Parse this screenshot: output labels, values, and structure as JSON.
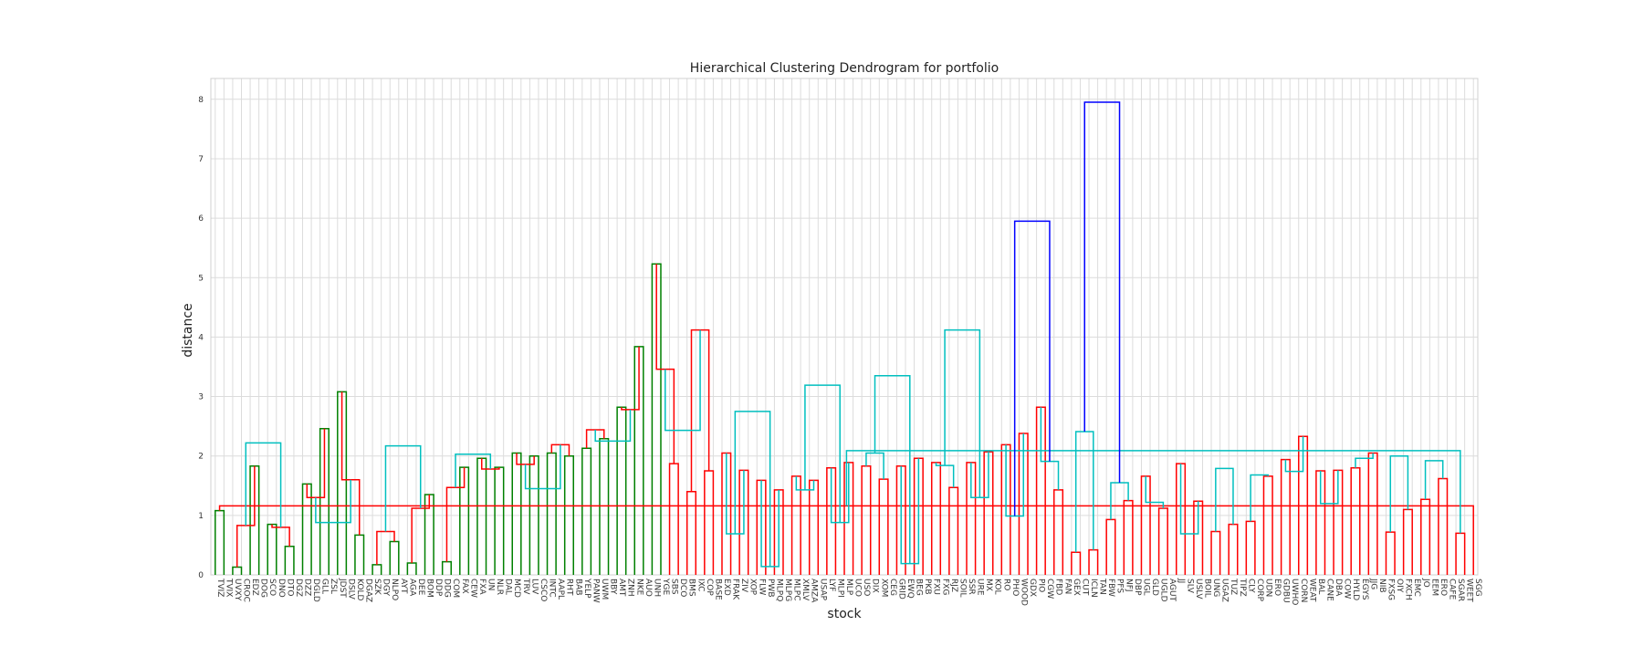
{
  "chart_data": {
    "type": "dendrogram",
    "title": "Hierarchical Clustering Dendrogram for portfolio",
    "xlabel": "stock",
    "ylabel": "distance",
    "ylim": [
      0,
      8.35
    ],
    "yticks": [
      0,
      1,
      2,
      3,
      4,
      5,
      6,
      7,
      8
    ],
    "grid": true,
    "colors": {
      "green": "#008000",
      "red": "#ff0000",
      "cyan": "#00bfbf",
      "blue": "#0000ff"
    },
    "leaves": [
      "TVIZ",
      "TVIX",
      "UVXY",
      "CROC",
      "EDZ",
      "DOG",
      "SCO",
      "DNO",
      "DTO",
      "DGZ",
      "DZZ",
      "DGLD",
      "GLL",
      "ZSL",
      "JDST",
      "DSLV",
      "KOLD",
      "DGAZ",
      "SZK",
      "DGY",
      "NLPO",
      "AYT",
      "AGA",
      "DEE",
      "BOM",
      "DDP",
      "DDG",
      "COM",
      "FAX",
      "CEW",
      "FXA",
      "UN",
      "NLR",
      "DAL",
      "MCD",
      "TRV",
      "LUV",
      "CSCO",
      "INTC",
      "AAPL",
      "RHT",
      "BAB",
      "YELP",
      "PANW",
      "UWM",
      "BBY",
      "AMT",
      "ZNH",
      "NKE",
      "AUO",
      "UNH",
      "YGE",
      "SBS",
      "DCO",
      "BMS",
      "IXC",
      "COP",
      "BASE",
      "EXD",
      "FRAK",
      "ZIV",
      "XOP",
      "FLW",
      "PWB",
      "MLPQ",
      "MLPG",
      "MLPC",
      "XMLV",
      "AMZA",
      "USAP",
      "LYF",
      "MLPI",
      "MLP",
      "UCO",
      "USO",
      "DIX",
      "XOM",
      "CEG",
      "GRID",
      "EWQ",
      "BEG",
      "PKB",
      "FXU",
      "FXG",
      "RJZ",
      "SOIL",
      "SSR",
      "URE",
      "MX",
      "KOL",
      "RO",
      "PHO",
      "WOOD",
      "GDX",
      "PIO",
      "CGW",
      "FBD",
      "FAN",
      "GEX",
      "CUT",
      "ICLN",
      "TAN",
      "FBW",
      "PFS",
      "NFJ",
      "DBP",
      "UGL",
      "GLD",
      "UGLD",
      "AGUT",
      "JJ",
      "SLV",
      "USLV",
      "BOIL",
      "UNG",
      "UGAZ",
      "TUZ",
      "TIPZ",
      "CLY",
      "CORP",
      "UDN",
      "ERO",
      "GDBU",
      "UWHO",
      "CORN",
      "WEAT",
      "BAL",
      "CANE",
      "DBA",
      "COW",
      "HYLD",
      "EGYS",
      "JJG",
      "NIB",
      "FXSG",
      "OIY",
      "FXCH",
      "EMC",
      "JO",
      "EEM",
      "ERO",
      "CAFE",
      "SGAR",
      "WEET",
      "SGG"
    ],
    "links": [
      [
        0,
        1,
        1.08,
        "green"
      ],
      [
        2,
        3,
        0.13,
        "green"
      ],
      [
        4,
        5,
        1.83,
        "green"
      ],
      [
        6,
        7,
        0.85,
        "green"
      ],
      [
        8,
        9,
        0.48,
        "green"
      ],
      [
        10,
        11,
        1.53,
        "green"
      ],
      [
        12,
        13,
        2.46,
        "green"
      ],
      [
        14,
        15,
        3.08,
        "green"
      ],
      [
        16,
        17,
        0.67,
        "green"
      ],
      [
        18,
        19,
        0.17,
        "green"
      ],
      [
        20,
        21,
        0.56,
        "green"
      ],
      [
        22,
        23,
        0.2,
        "green"
      ],
      [
        24,
        25,
        1.35,
        "green"
      ],
      [
        26,
        27,
        0.22,
        "green"
      ],
      [
        28,
        29,
        1.81,
        "green"
      ],
      [
        30,
        31,
        1.96,
        "green"
      ],
      [
        32,
        33,
        1.81,
        "green"
      ],
      [
        34,
        35,
        2.05,
        "green"
      ],
      [
        36,
        37,
        2.0,
        "green"
      ],
      [
        38,
        39,
        2.05,
        "green"
      ],
      [
        40,
        41,
        2.0,
        "green"
      ],
      [
        42,
        43,
        2.13,
        "green"
      ],
      [
        44,
        45,
        2.29,
        "green"
      ],
      [
        46,
        47,
        2.82,
        "green"
      ],
      [
        48,
        49,
        3.84,
        "green"
      ],
      [
        50,
        51,
        5.23,
        "green"
      ],
      [
        52,
        53,
        1.87,
        "red"
      ],
      [
        54,
        55,
        1.4,
        "red"
      ],
      [
        56,
        57,
        1.75,
        "red"
      ],
      [
        58,
        59,
        2.05,
        "red"
      ],
      [
        60,
        61,
        1.76,
        "red"
      ],
      [
        62,
        63,
        1.59,
        "red"
      ],
      [
        64,
        65,
        1.43,
        "red"
      ],
      [
        66,
        67,
        1.66,
        "red"
      ],
      [
        68,
        69,
        1.59,
        "red"
      ],
      [
        70,
        71,
        1.8,
        "red"
      ],
      [
        72,
        73,
        1.89,
        "red"
      ],
      [
        74,
        75,
        1.83,
        "red"
      ],
      [
        76,
        77,
        1.61,
        "red"
      ],
      [
        78,
        79,
        1.83,
        "red"
      ],
      [
        80,
        81,
        1.96,
        "red"
      ],
      [
        82,
        83,
        1.89,
        "red"
      ],
      [
        84,
        85,
        1.47,
        "red"
      ],
      [
        86,
        87,
        1.89,
        "red"
      ],
      [
        88,
        89,
        2.07,
        "red"
      ],
      [
        90,
        91,
        2.19,
        "red"
      ],
      [
        92,
        93,
        2.38,
        "red"
      ],
      [
        94,
        95,
        2.82,
        "red"
      ],
      [
        96,
        97,
        1.43,
        "red"
      ],
      [
        98,
        99,
        0.38,
        "red"
      ],
      [
        100,
        101,
        0.42,
        "red"
      ],
      [
        102,
        103,
        0.93,
        "red"
      ],
      [
        104,
        105,
        1.25,
        "red"
      ],
      [
        106,
        107,
        1.66,
        "red"
      ],
      [
        108,
        109,
        1.12,
        "red"
      ],
      [
        110,
        111,
        1.87,
        "red"
      ],
      [
        112,
        113,
        1.24,
        "red"
      ],
      [
        114,
        115,
        0.73,
        "red"
      ],
      [
        116,
        117,
        0.85,
        "red"
      ],
      [
        118,
        119,
        0.9,
        "red"
      ],
      [
        120,
        121,
        1.66,
        "red"
      ],
      [
        122,
        123,
        1.94,
        "red"
      ],
      [
        124,
        125,
        2.33,
        "red"
      ],
      [
        126,
        127,
        1.75,
        "red"
      ],
      [
        128,
        129,
        1.76,
        "red"
      ],
      [
        130,
        131,
        1.8,
        "red"
      ],
      [
        132,
        133,
        2.05,
        "red"
      ],
      [
        134,
        135,
        0.72,
        "red"
      ],
      [
        136,
        137,
        1.1,
        "red"
      ],
      [
        138,
        139,
        1.27,
        "red"
      ],
      [
        140,
        141,
        1.62,
        "red"
      ],
      [
        142,
        143,
        0.7,
        "red"
      ],
      [
        144,
        145,
        1.16,
        "red"
      ],
      [
        146,
        147,
        0.83,
        "red"
      ],
      [
        148,
        149,
        0.8,
        "red"
      ],
      [
        150,
        151,
        1.3,
        "red"
      ],
      [
        152,
        153,
        1.6,
        "red"
      ],
      [
        154,
        155,
        0.73,
        "red"
      ],
      [
        156,
        157,
        1.12,
        "red"
      ],
      [
        158,
        159,
        1.47,
        "red"
      ],
      [
        160,
        161,
        1.78,
        "red"
      ],
      [
        162,
        163,
        1.86,
        "red"
      ],
      [
        164,
        165,
        2.19,
        "red"
      ],
      [
        166,
        167,
        2.44,
        "red"
      ],
      [
        168,
        169,
        2.78,
        "red"
      ],
      [
        170,
        171,
        3.46,
        "red"
      ],
      [
        172,
        173,
        4.12,
        "red"
      ],
      [
        174,
        175,
        0.69,
        "cyan"
      ],
      [
        176,
        177,
        0.14,
        "cyan"
      ],
      [
        178,
        179,
        1.43,
        "cyan"
      ],
      [
        180,
        181,
        0.88,
        "cyan"
      ],
      [
        182,
        183,
        2.05,
        "cyan"
      ],
      [
        184,
        185,
        0.19,
        "cyan"
      ],
      [
        186,
        187,
        1.84,
        "cyan"
      ],
      [
        188,
        189,
        1.3,
        "cyan"
      ],
      [
        190,
        191,
        0.99,
        "cyan"
      ],
      [
        192,
        193,
        1.91,
        "cyan"
      ],
      [
        194,
        195,
        2.41,
        "cyan"
      ],
      [
        196,
        197,
        1.55,
        "cyan"
      ],
      [
        198,
        199,
        1.22,
        "cyan"
      ],
      [
        200,
        201,
        0.69,
        "cyan"
      ],
      [
        202,
        203,
        1.79,
        "cyan"
      ],
      [
        204,
        205,
        1.68,
        "cyan"
      ],
      [
        206,
        207,
        1.74,
        "cyan"
      ],
      [
        208,
        209,
        1.2,
        "cyan"
      ],
      [
        210,
        211,
        1.96,
        "cyan"
      ],
      [
        212,
        213,
        2.0,
        "cyan"
      ],
      [
        214,
        215,
        1.92,
        "cyan"
      ],
      [
        216,
        217,
        2.09,
        "cyan"
      ],
      [
        218,
        219,
        2.22,
        "cyan"
      ],
      [
        220,
        221,
        0.88,
        "cyan"
      ],
      [
        222,
        223,
        2.17,
        "cyan"
      ],
      [
        224,
        225,
        2.03,
        "cyan"
      ],
      [
        226,
        227,
        1.45,
        "cyan"
      ],
      [
        228,
        229,
        2.25,
        "cyan"
      ],
      [
        230,
        231,
        2.43,
        "cyan"
      ],
      [
        232,
        233,
        2.75,
        "cyan"
      ],
      [
        234,
        235,
        3.19,
        "cyan"
      ],
      [
        236,
        237,
        3.35,
        "cyan"
      ],
      [
        238,
        239,
        4.12,
        "cyan"
      ],
      [
        240,
        241,
        5.95,
        "blue"
      ],
      [
        242,
        243,
        7.95,
        "blue"
      ]
    ]
  }
}
